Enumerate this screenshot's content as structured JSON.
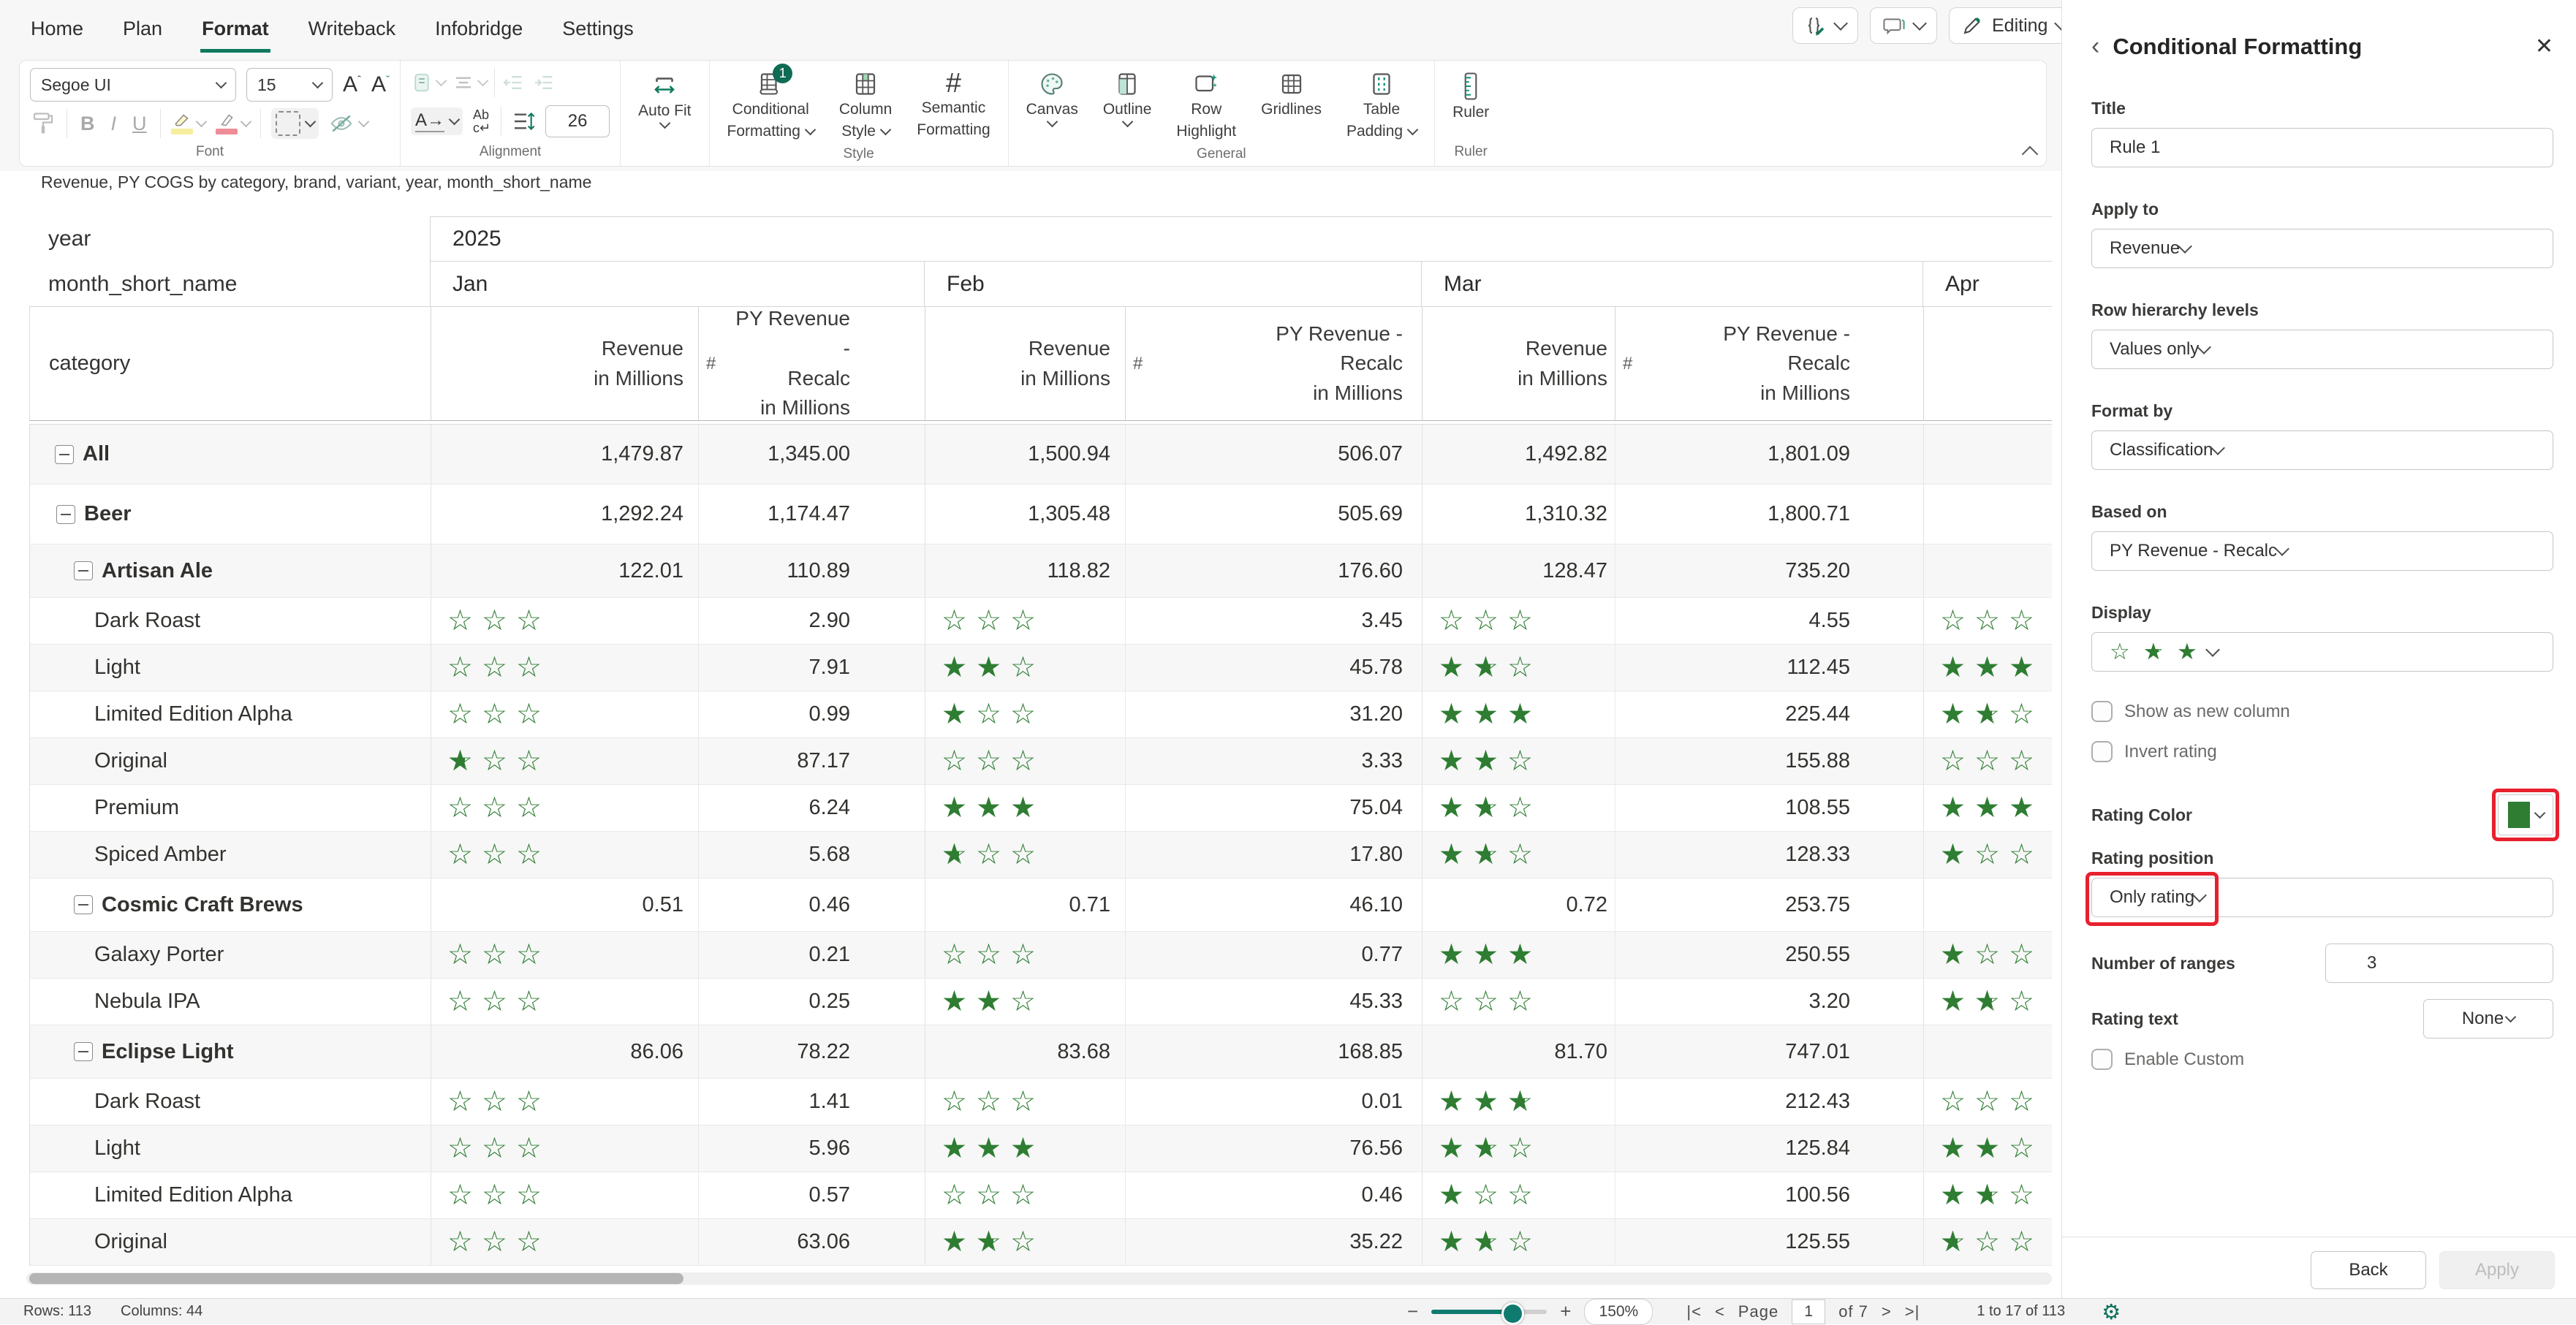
{
  "colors": {
    "accent": "#0e7a5e",
    "star_green": "#2e7d32",
    "badge_green": "#0f6b54",
    "annotation_red": "#e8202e"
  },
  "menu": {
    "items": [
      {
        "label": "Home",
        "active": false
      },
      {
        "label": "Plan",
        "active": false
      },
      {
        "label": "Format",
        "active": true
      },
      {
        "label": "Writeback",
        "active": false
      },
      {
        "label": "Infobridge",
        "active": false
      },
      {
        "label": "Settings",
        "active": false
      }
    ]
  },
  "topright": {
    "editing_label": "Editing"
  },
  "ribbon": {
    "font_name": "Segoe UI",
    "font_size": "15",
    "bold": "B",
    "italic": "I",
    "underline": "U",
    "text_direction": "A→",
    "wrap_top": "Ab",
    "wrap_bottom": "c↵",
    "row_height_value": "26",
    "autofit_label": "Auto Fit",
    "groups": {
      "font": "Font",
      "alignment": "Alignment",
      "style": "Style",
      "general": "General",
      "ruler": "Ruler"
    },
    "buttons": {
      "conditional_formatting_1": "Conditional",
      "conditional_formatting_2": "Formatting",
      "cf_badge": "1",
      "column_style_1": "Column",
      "column_style_2": "Style",
      "semantic_formatting_1": "Semantic",
      "semantic_formatting_2": "Formatting",
      "canvas": "Canvas",
      "outline": "Outline",
      "row_highlight_1": "Row",
      "row_highlight_2": "Highlight",
      "gridlines": "Gridlines",
      "table_padding_1": "Table",
      "table_padding_2": "Padding",
      "ruler": "Ruler"
    }
  },
  "table": {
    "title": "Revenue, PY COGS by category, brand, variant, year, month_short_name",
    "year_label": "year",
    "year_value": "2025",
    "month_label": "month_short_name",
    "months": [
      "Jan",
      "Feb",
      "Mar",
      "Apr"
    ],
    "category_label": "category",
    "col_headers": {
      "revenue": [
        "Revenue",
        "in Millions"
      ],
      "hash": "#",
      "py": [
        "PY Revenue -",
        "Recalc",
        "in Millions"
      ]
    },
    "rows": [
      {
        "label": "All",
        "level": 0,
        "group": true,
        "jan": {
          "rev": "1,479.87",
          "py": "1,345.00"
        },
        "feb": {
          "rev": "1,500.94",
          "py": "506.07"
        },
        "mar": {
          "rev": "1,492.82",
          "py": "1,801.09"
        },
        "apr": {}
      },
      {
        "label": "Beer",
        "level": 1,
        "group": true,
        "jan": {
          "rev": "1,292.24",
          "py": "1,174.47"
        },
        "feb": {
          "rev": "1,305.48",
          "py": "505.69"
        },
        "mar": {
          "rev": "1,310.32",
          "py": "1,800.71"
        },
        "apr": {}
      },
      {
        "label": "Artisan Ale",
        "level": 2,
        "group": true,
        "jan": {
          "rev": "122.01",
          "py": "110.89"
        },
        "feb": {
          "rev": "118.82",
          "py": "176.60"
        },
        "mar": {
          "rev": "128.47",
          "py": "735.20"
        },
        "apr": {}
      },
      {
        "label": "Dark Roast",
        "level": 3,
        "group": false,
        "jan": {
          "stars": 0,
          "py": "2.90"
        },
        "feb": {
          "stars": 0,
          "py": "3.45"
        },
        "mar": {
          "stars": 0,
          "py": "4.55"
        },
        "apr": {
          "stars": 0
        }
      },
      {
        "label": "Light",
        "level": 3,
        "group": false,
        "jan": {
          "stars": 0,
          "py": "7.91"
        },
        "feb": {
          "stars": 2,
          "py": "45.78"
        },
        "mar": {
          "stars": 1.5,
          "py": "112.45"
        },
        "apr": {
          "stars": 3
        }
      },
      {
        "label": "Limited Edition Alpha",
        "level": 3,
        "group": false,
        "jan": {
          "stars": 0,
          "py": "0.99"
        },
        "feb": {
          "stars": 1,
          "py": "31.20"
        },
        "mar": {
          "stars": 3,
          "py": "225.44"
        },
        "apr": {
          "stars": 1.5
        }
      },
      {
        "label": "Original",
        "level": 3,
        "group": false,
        "jan": {
          "stars": 0.5,
          "py": "87.17"
        },
        "feb": {
          "stars": 0,
          "py": "3.33"
        },
        "mar": {
          "stars": 2,
          "py": "155.88"
        },
        "apr": {
          "stars": 0
        }
      },
      {
        "label": "Premium",
        "level": 3,
        "group": false,
        "jan": {
          "stars": 0,
          "py": "6.24"
        },
        "feb": {
          "stars": 3,
          "py": "75.04"
        },
        "mar": {
          "stars": 1.5,
          "py": "108.55"
        },
        "apr": {
          "stars": 3
        }
      },
      {
        "label": "Spiced Amber",
        "level": 3,
        "group": false,
        "jan": {
          "stars": 0,
          "py": "5.68"
        },
        "feb": {
          "stars": 0.5,
          "py": "17.80"
        },
        "mar": {
          "stars": 1.5,
          "py": "128.33"
        },
        "apr": {
          "stars": 1
        }
      },
      {
        "label": "Cosmic Craft Brews",
        "level": 2,
        "group": true,
        "jan": {
          "rev": "0.51",
          "py": "0.46"
        },
        "feb": {
          "rev": "0.71",
          "py": "46.10"
        },
        "mar": {
          "rev": "0.72",
          "py": "253.75"
        },
        "apr": {}
      },
      {
        "label": "Galaxy Porter",
        "level": 3,
        "group": false,
        "jan": {
          "stars": 0,
          "py": "0.21"
        },
        "feb": {
          "stars": 0,
          "py": "0.77"
        },
        "mar": {
          "stars": 3,
          "py": "250.55"
        },
        "apr": {
          "stars": 1
        }
      },
      {
        "label": "Nebula IPA",
        "level": 3,
        "group": false,
        "jan": {
          "stars": 0,
          "py": "0.25"
        },
        "feb": {
          "stars": 2,
          "py": "45.33"
        },
        "mar": {
          "stars": 0,
          "py": "3.20"
        },
        "apr": {
          "stars": 1.5
        }
      },
      {
        "label": "Eclipse Light",
        "level": 2,
        "group": true,
        "jan": {
          "rev": "86.06",
          "py": "78.22"
        },
        "feb": {
          "rev": "83.68",
          "py": "168.85"
        },
        "mar": {
          "rev": "81.70",
          "py": "747.01"
        },
        "apr": {}
      },
      {
        "label": "Dark Roast",
        "level": 3,
        "group": false,
        "jan": {
          "stars": 0,
          "py": "1.41"
        },
        "feb": {
          "stars": 0,
          "py": "0.01"
        },
        "mar": {
          "stars": 2.5,
          "py": "212.43"
        },
        "apr": {
          "stars": 0
        }
      },
      {
        "label": "Light",
        "level": 3,
        "group": false,
        "jan": {
          "stars": 0,
          "py": "5.96"
        },
        "feb": {
          "stars": 3,
          "py": "76.56"
        },
        "mar": {
          "stars": 1.5,
          "py": "125.84"
        },
        "apr": {
          "stars": 2
        }
      },
      {
        "label": "Limited Edition Alpha",
        "level": 3,
        "group": false,
        "jan": {
          "stars": 0,
          "py": "0.57"
        },
        "feb": {
          "stars": 0,
          "py": "0.46"
        },
        "mar": {
          "stars": 1,
          "py": "100.56"
        },
        "apr": {
          "stars": 1.5
        }
      },
      {
        "label": "Original",
        "level": 3,
        "group": false,
        "jan": {
          "stars": 0,
          "py": "63.06"
        },
        "feb": {
          "stars": 1.5,
          "py": "35.22"
        },
        "mar": {
          "stars": 1.5,
          "py": "125.55"
        },
        "apr": {
          "stars": 0.5
        }
      }
    ]
  },
  "panel": {
    "back_chevron": "‹",
    "title": "Conditional Formatting",
    "close": "✕",
    "fields": {
      "title": {
        "label": "Title",
        "value": "Rule 1"
      },
      "apply_to": {
        "label": "Apply to",
        "value": "Revenue"
      },
      "row_hierarchy": {
        "label": "Row hierarchy levels",
        "value": "Values only"
      },
      "format_by": {
        "label": "Format by",
        "value": "Classification"
      },
      "based_on": {
        "label": "Based on",
        "value": "PY Revenue - Recalc"
      },
      "display": {
        "label": "Display"
      },
      "rating_color": {
        "label": "Rating Color",
        "color": "#2e7d32"
      },
      "rating_position": {
        "label": "Rating position",
        "value": "Only rating"
      },
      "number_of_ranges": {
        "label": "Number of ranges",
        "value": "3"
      },
      "rating_text": {
        "label": "Rating text",
        "value": "None"
      }
    },
    "checkboxes": {
      "show_as_new_column": "Show as new column",
      "invert_rating": "Invert rating",
      "enable_custom": "Enable Custom"
    },
    "buttons": {
      "back": "Back",
      "apply": "Apply"
    }
  },
  "statusbar": {
    "rows": "Rows: 113",
    "columns": "Columns: 44",
    "zoom_out": "−",
    "zoom_in": "+",
    "zoom_value": "150%",
    "first": "|<",
    "prev": "<",
    "page_label": "Page",
    "page_value": "1",
    "page_total": "of 7",
    "next": ">",
    "last": ">|",
    "range": "1 to 17 of 113"
  }
}
